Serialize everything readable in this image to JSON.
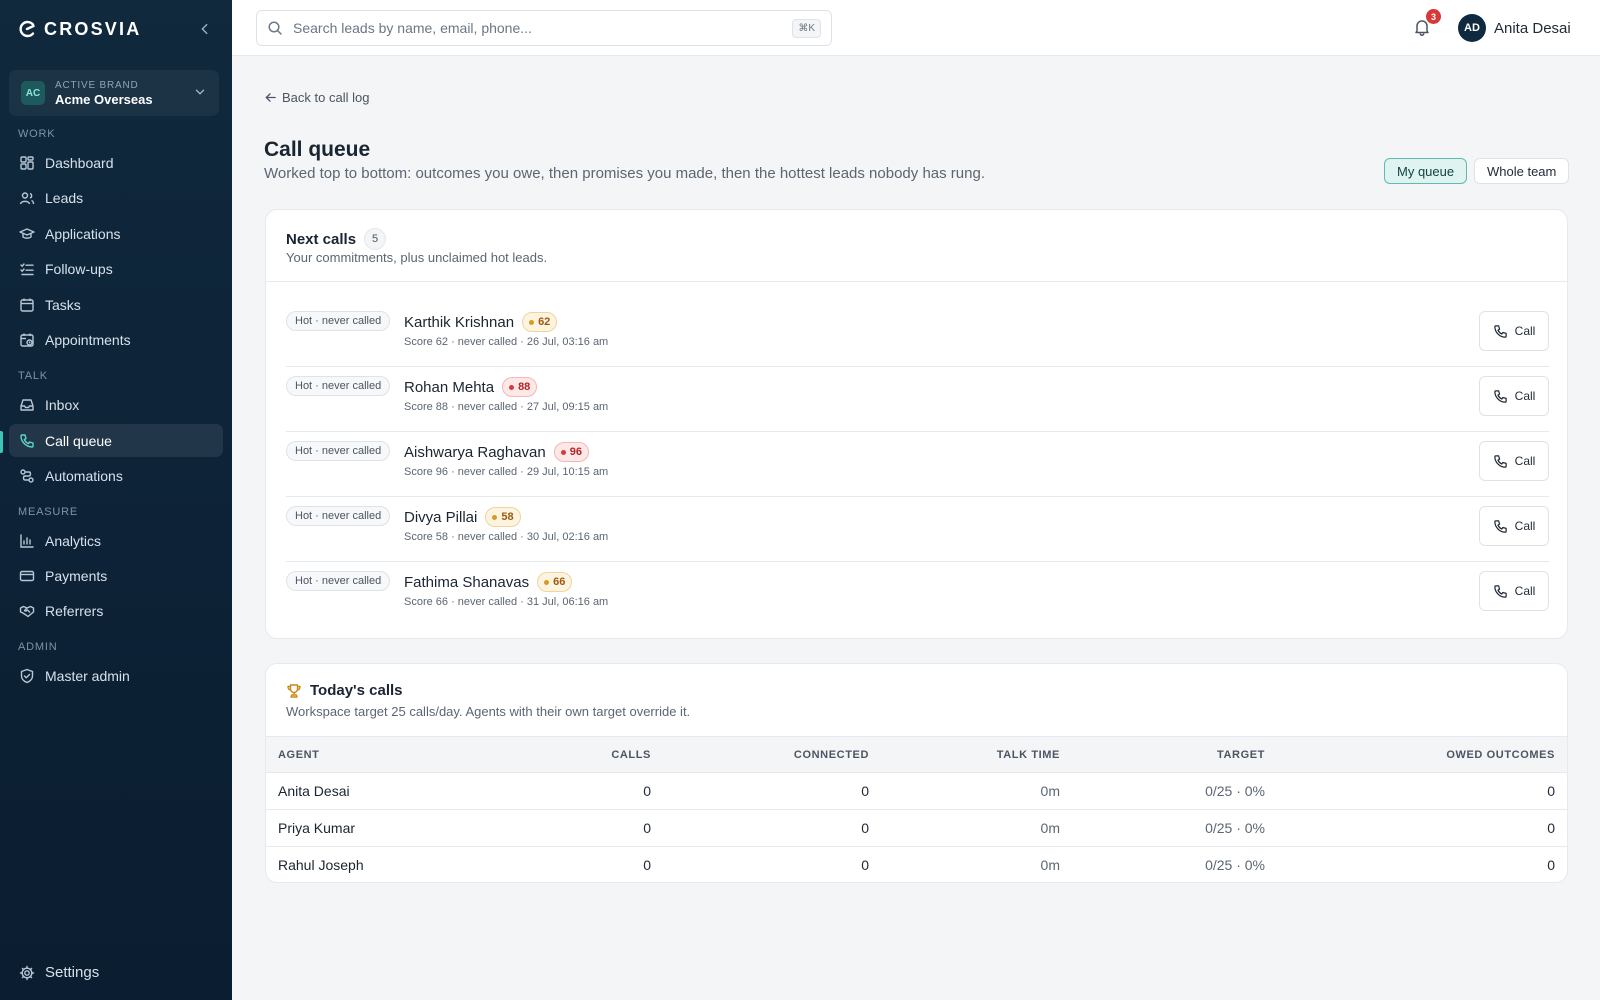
{
  "sidebar": {
    "logo": "CROSVIA",
    "brand": {
      "label": "ACTIVE BRAND",
      "name": "Acme Overseas",
      "initials": "AC"
    },
    "sections": [
      {
        "title": "WORK",
        "items": [
          {
            "label": "Dashboard",
            "icon": "dashboard-icon"
          },
          {
            "label": "Leads",
            "icon": "users-icon"
          },
          {
            "label": "Applications",
            "icon": "graduation-cap-icon"
          },
          {
            "label": "Follow-ups",
            "icon": "list-check-icon"
          },
          {
            "label": "Tasks",
            "icon": "calendar-icon"
          },
          {
            "label": "Appointments",
            "icon": "calendar-clock-icon"
          }
        ]
      },
      {
        "title": "TALK",
        "items": [
          {
            "label": "Inbox",
            "icon": "inbox-icon"
          },
          {
            "label": "Call queue",
            "icon": "phone-icon",
            "active": true
          },
          {
            "label": "Automations",
            "icon": "workflow-icon"
          }
        ]
      },
      {
        "title": "MEASURE",
        "items": [
          {
            "label": "Analytics",
            "icon": "bar-chart-icon"
          },
          {
            "label": "Payments",
            "icon": "credit-card-icon"
          },
          {
            "label": "Referrers",
            "icon": "handshake-icon"
          }
        ]
      },
      {
        "title": "ADMIN",
        "items": [
          {
            "label": "Master admin",
            "icon": "shield-icon"
          }
        ]
      }
    ],
    "settings_label": "Settings"
  },
  "topbar": {
    "search_placeholder": "Search leads by name, email, phone...",
    "shortcut": "⌘K",
    "notifications_count": "3",
    "user": {
      "initials": "AD",
      "name": "Anita Desai"
    }
  },
  "main": {
    "back_label": "Back to call log",
    "title": "Call queue",
    "subtitle": "Worked top to bottom: outcomes you owe, then promises you made, then the hottest leads nobody has rung.",
    "toggle": {
      "my": "My queue",
      "team": "Whole team",
      "selected": "My queue"
    }
  },
  "next_calls": {
    "title": "Next calls",
    "count": "5",
    "description": "Your commitments, plus unclaimed hot leads.",
    "call_label": "Call",
    "rows": [
      {
        "tag": "Hot · never called",
        "name": "Karthik Krishnan",
        "score": "62",
        "heat": "warm",
        "meta": "Score 62 · never called · 26 Jul, 03:16 am"
      },
      {
        "tag": "Hot · never called",
        "name": "Rohan Mehta",
        "score": "88",
        "heat": "hot",
        "meta": "Score 88 · never called · 27 Jul, 09:15 am"
      },
      {
        "tag": "Hot · never called",
        "name": "Aishwarya Raghavan",
        "score": "96",
        "heat": "hot",
        "meta": "Score 96 · never called · 29 Jul, 10:15 am"
      },
      {
        "tag": "Hot · never called",
        "name": "Divya Pillai",
        "score": "58",
        "heat": "warm",
        "meta": "Score 58 · never called · 30 Jul, 02:16 am"
      },
      {
        "tag": "Hot · never called",
        "name": "Fathima Shanavas",
        "score": "66",
        "heat": "warm",
        "meta": "Score 66 · never called · 31 Jul, 06:16 am"
      }
    ]
  },
  "todays_calls": {
    "title": "Today's calls",
    "description": "Workspace target 25 calls/day. Agents with their own target override it.",
    "columns": [
      "AGENT",
      "CALLS",
      "CONNECTED",
      "TALK TIME",
      "TARGET",
      "OWED OUTCOMES"
    ],
    "rows": [
      {
        "agent": "Anita Desai",
        "calls": "0",
        "connected": "0",
        "talk_time": "0m",
        "target": "0/25 · 0%",
        "owed": "0"
      },
      {
        "agent": "Priya Kumar",
        "calls": "0",
        "connected": "0",
        "talk_time": "0m",
        "target": "0/25 · 0%",
        "owed": "0"
      },
      {
        "agent": "Rahul Joseph",
        "calls": "0",
        "connected": "0",
        "talk_time": "0m",
        "target": "0/25 · 0%",
        "owed": "0"
      }
    ]
  },
  "colors": {
    "accent": "#3ec5b7",
    "hot": "#d93838",
    "warm": "#d99a25",
    "sidebar": "#0d2236"
  }
}
